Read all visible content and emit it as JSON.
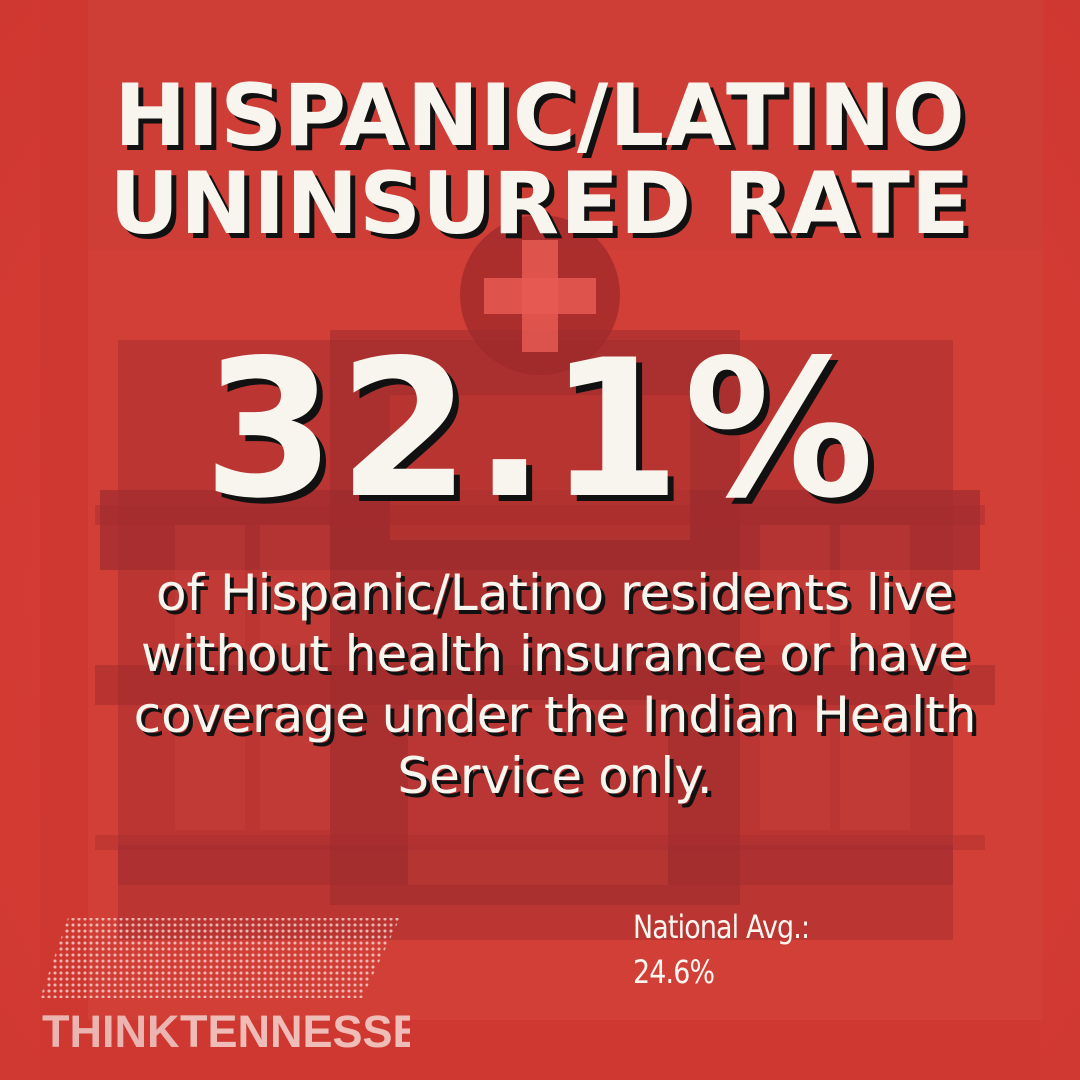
{
  "headline": {
    "line1": "HISPANIC/LATINO",
    "line2": "UNINSURED RATE"
  },
  "stat": {
    "value": "32.1%"
  },
  "description": {
    "text": "of Hispanic/Latino residents live without health insurance or have coverage under the Indian Health Service only."
  },
  "national_average": {
    "label": "National Avg.:",
    "value": "24.6%"
  },
  "logo": {
    "text_think": "THINK",
    "text_tennessee": "TENNESSEE"
  },
  "colors": {
    "background": "#d63a33",
    "icon_dark": "#9f2b2d",
    "text": "#f8f5ee",
    "shadow": "#111111"
  },
  "icons": {
    "background_icon": "hospital-icon",
    "cross_icon": "medical-cross-icon"
  }
}
